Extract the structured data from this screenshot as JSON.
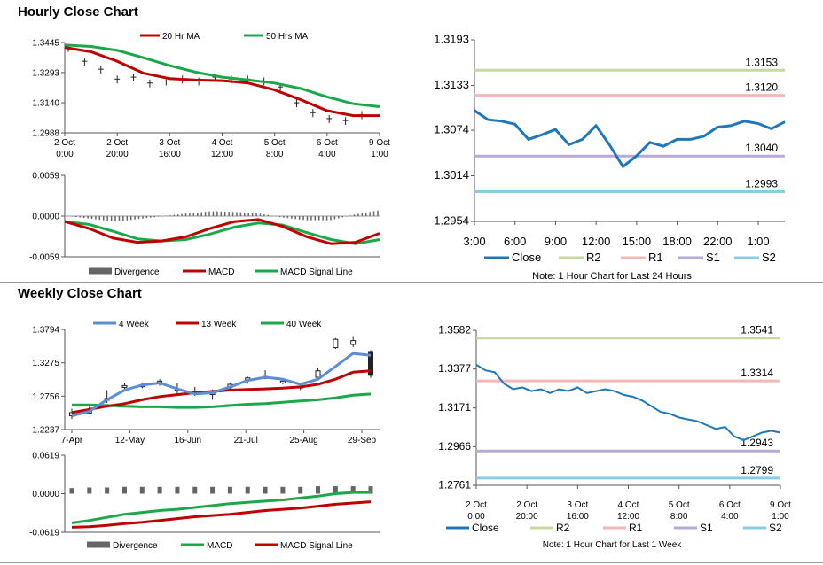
{
  "hourly_title": "Hourly Close Chart",
  "weekly_title": "Weekly Close Chart",
  "colors": {
    "ma20": "#c00000",
    "ma50": "#1aa84a",
    "close": "#1f77bb",
    "r2": "#c5d9a0",
    "r1": "#f2b8b8",
    "s1": "#b9a9d6",
    "s2": "#8ccbe6",
    "divergence": "#666666",
    "macd_red": "#c00000",
    "macd_green": "#1aa84a",
    "ma4": "#5b8ed6"
  },
  "chart_data": [
    {
      "id": "hourly_price",
      "type": "line",
      "x_ticks": [
        "2 Oct 0:00",
        "2 Oct 20:00",
        "3 Oct 16:00",
        "4 Oct 12:00",
        "5 Oct 8:00",
        "6 Oct 4:00",
        "9 Oct 1:00"
      ],
      "y_ticks": [
        "1.3445",
        "1.3293",
        "1.3140",
        "1.2988"
      ],
      "ylim": [
        1.2988,
        1.3445
      ],
      "legend": [
        "20 Hr MA",
        "50 Hrs MA"
      ],
      "series": [
        {
          "name": "20 Hr MA",
          "values": [
            1.342,
            1.3398,
            1.335,
            1.329,
            1.3262,
            1.3255,
            1.3252,
            1.324,
            1.3205,
            1.3155,
            1.31,
            1.3075,
            1.3075
          ]
        },
        {
          "name": "50 Hrs MA",
          "values": [
            1.3432,
            1.3425,
            1.3405,
            1.3368,
            1.3328,
            1.3295,
            1.327,
            1.3255,
            1.324,
            1.3212,
            1.317,
            1.3135,
            1.312
          ]
        }
      ],
      "price_bars": [
        1.342,
        1.335,
        1.331,
        1.326,
        1.327,
        1.324,
        1.325,
        1.326,
        1.325,
        1.327,
        1.326,
        1.326,
        1.325,
        1.322,
        1.314,
        1.309,
        1.306,
        1.305,
        1.308
      ]
    },
    {
      "id": "hourly_macd",
      "type": "line",
      "y_ticks": [
        "0.0059",
        "0.0000",
        "-0.0059"
      ],
      "ylim": [
        -0.0059,
        0.0059
      ],
      "legend": [
        "Divergence",
        "MACD",
        "MACD Signal Line"
      ],
      "series": [
        {
          "name": "MACD",
          "values": [
            -0.0008,
            -0.0018,
            -0.0032,
            -0.0038,
            -0.0036,
            -0.003,
            -0.0018,
            -0.0008,
            -0.0005,
            -0.0015,
            -0.003,
            -0.004,
            -0.0038,
            -0.0025
          ]
        },
        {
          "name": "MACD Signal Line",
          "values": [
            -0.0008,
            -0.0012,
            -0.0022,
            -0.0033,
            -0.0036,
            -0.0034,
            -0.0026,
            -0.0016,
            -0.001,
            -0.0013,
            -0.0024,
            -0.0034,
            -0.004,
            -0.0034
          ]
        },
        {
          "name": "Divergence",
          "values": [
            0.0,
            -0.0004,
            -0.0008,
            -0.0004,
            0.0,
            0.0004,
            0.0007,
            0.0006,
            0.0004,
            -0.0002,
            -0.0006,
            -0.0006,
            0.0002,
            0.0008
          ]
        }
      ]
    },
    {
      "id": "hourly_24h",
      "type": "line",
      "x_ticks": [
        "3:00",
        "6:00",
        "9:00",
        "12:00",
        "15:00",
        "18:00",
        "22:00",
        "1:00"
      ],
      "y_ticks": [
        "1.3193",
        "1.3133",
        "1.3074",
        "1.3014",
        "1.2954"
      ],
      "ylim": [
        1.2954,
        1.3193
      ],
      "levels": [
        {
          "name": "R2",
          "value": 1.3153,
          "label": "1.3153"
        },
        {
          "name": "R1",
          "value": 1.312,
          "label": "1.3120"
        },
        {
          "name": "S1",
          "value": 1.304,
          "label": "1.3040"
        },
        {
          "name": "S2",
          "value": 1.2993,
          "label": "1.2993"
        }
      ],
      "legend": [
        "Close",
        "R2",
        "R1",
        "S1",
        "S2"
      ],
      "note": "Note: 1 Hour Chart for Last 24 Hours",
      "series": [
        {
          "name": "Close",
          "values": [
            1.31,
            1.3088,
            1.3086,
            1.3082,
            1.3062,
            1.3068,
            1.3075,
            1.3055,
            1.3062,
            1.308,
            1.3055,
            1.3026,
            1.304,
            1.3058,
            1.3053,
            1.3062,
            1.3062,
            1.3066,
            1.3078,
            1.308,
            1.3086,
            1.3083,
            1.3076,
            1.3085
          ]
        }
      ]
    },
    {
      "id": "weekly_price",
      "type": "line",
      "x_ticks": [
        "7-Apr",
        "12-May",
        "16-Jun",
        "21-Jul",
        "25-Aug",
        "29-Sep"
      ],
      "y_ticks": [
        "1.3794",
        "1.3275",
        "1.2756",
        "1.2237"
      ],
      "ylim": [
        1.2237,
        1.3794
      ],
      "legend": [
        "4 Week",
        "13 Week",
        "40 Week"
      ],
      "series": [
        {
          "name": "4 Week",
          "values": [
            1.245,
            1.252,
            1.27,
            1.285,
            1.293,
            1.296,
            1.287,
            1.279,
            1.281,
            1.29,
            1.3,
            1.305,
            1.302,
            1.294,
            1.302,
            1.322,
            1.342,
            1.339
          ]
        },
        {
          "name": "13 Week",
          "values": [
            1.25,
            1.255,
            1.26,
            1.264,
            1.27,
            1.275,
            1.278,
            1.281,
            1.283,
            1.285,
            1.286,
            1.287,
            1.288,
            1.29,
            1.294,
            1.302,
            1.313,
            1.315
          ]
        },
        {
          "name": "40 Week",
          "values": [
            1.262,
            1.262,
            1.261,
            1.26,
            1.259,
            1.259,
            1.258,
            1.258,
            1.259,
            1.261,
            1.263,
            1.264,
            1.266,
            1.268,
            1.27,
            1.273,
            1.277,
            1.279
          ]
        }
      ],
      "candles": [
        {
          "o": 1.245,
          "c": 1.25,
          "h": 1.256,
          "l": 1.24
        },
        {
          "o": 1.25,
          "c": 1.252,
          "h": 1.26,
          "l": 1.247
        },
        {
          "o": 1.27,
          "c": 1.272,
          "h": 1.285,
          "l": 1.265
        },
        {
          "o": 1.29,
          "c": 1.292,
          "h": 1.296,
          "l": 1.284
        },
        {
          "o": 1.291,
          "c": 1.293,
          "h": 1.297,
          "l": 1.288
        },
        {
          "o": 1.296,
          "c": 1.299,
          "h": 1.302,
          "l": 1.292
        },
        {
          "o": 1.285,
          "c": 1.287,
          "h": 1.296,
          "l": 1.279
        },
        {
          "o": 1.281,
          "c": 1.283,
          "h": 1.29,
          "l": 1.276
        },
        {
          "o": 1.279,
          "c": 1.281,
          "h": 1.286,
          "l": 1.27
        },
        {
          "o": 1.289,
          "c": 1.294,
          "h": 1.297,
          "l": 1.286
        },
        {
          "o": 1.301,
          "c": 1.304,
          "h": 1.306,
          "l": 1.295
        },
        {
          "o": 1.305,
          "c": 1.306,
          "h": 1.316,
          "l": 1.302
        },
        {
          "o": 1.298,
          "c": 1.299,
          "h": 1.303,
          "l": 1.294
        },
        {
          "o": 1.289,
          "c": 1.291,
          "h": 1.296,
          "l": 1.285
        },
        {
          "o": 1.305,
          "c": 1.315,
          "h": 1.32,
          "l": 1.302
        },
        {
          "o": 1.351,
          "c": 1.364,
          "h": 1.366,
          "l": 1.349
        },
        {
          "o": 1.356,
          "c": 1.362,
          "h": 1.369,
          "l": 1.352
        },
        {
          "o": 1.345,
          "c": 1.308,
          "h": 1.347,
          "l": 1.304
        }
      ]
    },
    {
      "id": "weekly_macd",
      "type": "line",
      "y_ticks": [
        "0.0619",
        "0.0000",
        "-0.0619"
      ],
      "ylim": [
        -0.0619,
        0.0619
      ],
      "legend": [
        "Divergence",
        "MACD",
        "MACD Signal Line"
      ],
      "series": [
        {
          "name": "MACD",
          "values": [
            -0.047,
            -0.043,
            -0.038,
            -0.033,
            -0.03,
            -0.027,
            -0.025,
            -0.022,
            -0.019,
            -0.016,
            -0.014,
            -0.012,
            -0.01,
            -0.007,
            -0.004,
            0.0,
            0.002,
            0.002
          ]
        },
        {
          "name": "MACD Signal Line",
          "values": [
            -0.054,
            -0.053,
            -0.051,
            -0.048,
            -0.046,
            -0.043,
            -0.04,
            -0.037,
            -0.035,
            -0.033,
            -0.03,
            -0.027,
            -0.025,
            -0.023,
            -0.02,
            -0.017,
            -0.015,
            -0.013
          ]
        },
        {
          "name": "Divergence",
          "values": [
            0.009,
            0.01,
            0.01,
            0.011,
            0.011,
            0.011,
            0.011,
            0.011,
            0.011,
            0.011,
            0.011,
            0.011,
            0.011,
            0.011,
            0.012,
            0.012,
            0.012,
            0.012
          ]
        }
      ]
    },
    {
      "id": "weekly_1w",
      "type": "line",
      "x_ticks": [
        "2 Oct 0:00",
        "2 Oct 20:00",
        "3 Oct 16:00",
        "4 Oct 12:00",
        "5 Oct 8:00",
        "6 Oct 4:00",
        "9 Oct 1:00"
      ],
      "y_ticks": [
        "1.3582",
        "1.3377",
        "1.3171",
        "1.2966",
        "1.2761"
      ],
      "ylim": [
        1.2761,
        1.3582
      ],
      "levels": [
        {
          "name": "R2",
          "value": 1.3541,
          "label": "1.3541"
        },
        {
          "name": "R1",
          "value": 1.3314,
          "label": "1.3314"
        },
        {
          "name": "S1",
          "value": 1.2943,
          "label": "1.2943"
        },
        {
          "name": "S2",
          "value": 1.2799,
          "label": "1.2799"
        }
      ],
      "legend": [
        "Close",
        "R2",
        "R1",
        "S1",
        "S2"
      ],
      "note": "Note: 1 Hour Chart for Last 1 Week",
      "series": [
        {
          "name": "Close",
          "values": [
            1.34,
            1.337,
            1.336,
            1.33,
            1.327,
            1.328,
            1.326,
            1.327,
            1.325,
            1.327,
            1.326,
            1.328,
            1.325,
            1.326,
            1.327,
            1.326,
            1.324,
            1.323,
            1.321,
            1.318,
            1.315,
            1.314,
            1.312,
            1.311,
            1.31,
            1.308,
            1.306,
            1.307,
            1.302,
            1.3,
            1.302,
            1.304,
            1.305,
            1.304
          ]
        }
      ]
    }
  ]
}
